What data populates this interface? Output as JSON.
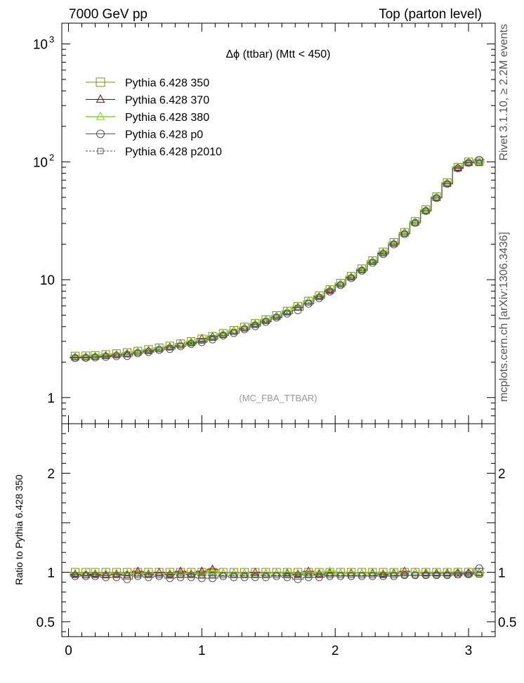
{
  "header": {
    "energy_label": "7000 GeV pp",
    "process_label": "Top (parton level)"
  },
  "side_labels": {
    "rivet": "Rivet 3.1.10, ≥ 2.2M events",
    "mcplots": "mcplots.cern.ch [arXiv:1306.3436]"
  },
  "chart_data": [
    {
      "type": "line",
      "title": "Δϕ (ttbar) (Mtt < 450)",
      "watermark": "(MC_FBA_TTBAR)",
      "y_scale": "log",
      "xlim": [
        -0.05,
        3.2
      ],
      "ylim": [
        0.6,
        1500
      ],
      "y_ticks": [
        {
          "value": 1,
          "label": "1"
        },
        {
          "value": 10,
          "label": "10"
        },
        {
          "value": 100,
          "label": "10",
          "exp": "2"
        },
        {
          "value": 1000,
          "label": "10",
          "exp": "3"
        }
      ],
      "legend_position": "top-left",
      "x": [
        0.05,
        0.13,
        0.2,
        0.28,
        0.36,
        0.44,
        0.52,
        0.6,
        0.68,
        0.76,
        0.84,
        0.92,
        1.0,
        1.08,
        1.16,
        1.24,
        1.32,
        1.4,
        1.48,
        1.56,
        1.64,
        1.72,
        1.8,
        1.88,
        1.96,
        2.04,
        2.12,
        2.2,
        2.28,
        2.36,
        2.44,
        2.52,
        2.6,
        2.68,
        2.76,
        2.84,
        2.92,
        3.0,
        3.08
      ],
      "series": [
        {
          "name": "Pythia 6.428 350",
          "color": "#8a8a1a",
          "marker": "square",
          "dash": "solid",
          "values": [
            2.25,
            2.26,
            2.28,
            2.32,
            2.36,
            2.41,
            2.48,
            2.56,
            2.64,
            2.74,
            2.86,
            2.99,
            3.14,
            3.31,
            3.5,
            3.72,
            3.97,
            4.26,
            4.59,
            4.97,
            5.42,
            5.95,
            6.58,
            7.33,
            8.24,
            9.35,
            10.7,
            12.4,
            14.5,
            17.2,
            20.7,
            25.2,
            31.2,
            39.3,
            50.6,
            66.7,
            90.0,
            100.0,
            100.0
          ]
        },
        {
          "name": "Pythia 6.428 370",
          "color": "#800020",
          "marker": "triangle",
          "dash": "solid",
          "values": [
            2.2,
            2.2,
            2.24,
            2.25,
            2.31,
            2.33,
            2.46,
            2.5,
            2.62,
            2.68,
            2.86,
            2.93,
            3.17,
            3.28,
            3.46,
            3.69,
            3.93,
            4.17,
            4.54,
            4.92,
            5.36,
            5.83,
            6.58,
            7.19,
            8.16,
            9.26,
            10.6,
            12.2,
            14.4,
            16.9,
            20.5,
            25.2,
            31.2,
            38.9,
            50.1,
            66.0,
            89.1,
            99.0,
            99.5
          ]
        },
        {
          "name": "Pythia 6.428 380",
          "color": "#80d820",
          "marker": "triangle",
          "dash": "solid",
          "values": [
            2.23,
            2.24,
            2.26,
            2.3,
            2.34,
            2.39,
            2.46,
            2.54,
            2.62,
            2.72,
            2.84,
            2.97,
            3.12,
            3.34,
            3.48,
            3.7,
            3.95,
            4.24,
            4.57,
            4.95,
            5.4,
            5.93,
            6.6,
            7.3,
            8.3,
            9.3,
            10.7,
            12.3,
            14.5,
            17.1,
            20.6,
            25.1,
            31.3,
            39.2,
            50.4,
            66.5,
            90.5,
            100.5,
            100.0
          ]
        },
        {
          "name": "Pythia 6.428 p0",
          "color": "#555555",
          "marker": "circle",
          "dash": "solid",
          "values": [
            2.16,
            2.17,
            2.19,
            2.21,
            2.24,
            2.25,
            2.38,
            2.43,
            2.53,
            2.58,
            2.72,
            2.85,
            2.95,
            3.11,
            3.36,
            3.52,
            3.79,
            4.03,
            4.38,
            4.77,
            5.15,
            5.5,
            6.25,
            6.97,
            7.91,
            8.98,
            10.3,
            11.9,
            13.9,
            16.5,
            19.9,
            24.4,
            30.3,
            38.3,
            49.3,
            64.9,
            88.0,
            98.0,
            104.0
          ]
        },
        {
          "name": "Pythia 6.428 p2010",
          "color": "#555555",
          "marker": "square-small",
          "dash": "dashed",
          "values": [
            2.18,
            2.19,
            2.21,
            2.25,
            2.28,
            2.33,
            2.4,
            2.47,
            2.56,
            2.65,
            2.76,
            2.89,
            3.03,
            3.2,
            3.38,
            3.6,
            3.84,
            4.13,
            4.45,
            4.82,
            5.26,
            5.77,
            6.38,
            7.11,
            7.99,
            9.07,
            10.4,
            12.0,
            14.1,
            16.7,
            20.1,
            24.5,
            30.4,
            38.2,
            49.1,
            64.8,
            87.5,
            97.5,
            97.5
          ]
        }
      ]
    },
    {
      "type": "line",
      "ylabel": "Ratio to Pythia 6.428 350",
      "xlim": [
        -0.05,
        3.2
      ],
      "ylim": [
        0.35,
        2.5
      ],
      "x_ticks": [
        {
          "value": 0,
          "label": "0"
        },
        {
          "value": 1,
          "label": "1"
        },
        {
          "value": 2,
          "label": "2"
        },
        {
          "value": 3,
          "label": "3"
        }
      ],
      "y_ticks": [
        {
          "value": 0.5,
          "label": "0.5"
        },
        {
          "value": 1,
          "label": "1"
        },
        {
          "value": 2,
          "label": "2"
        }
      ],
      "x": [
        0.05,
        0.13,
        0.2,
        0.28,
        0.36,
        0.44,
        0.52,
        0.6,
        0.68,
        0.76,
        0.84,
        0.92,
        1.0,
        1.08,
        1.16,
        1.24,
        1.32,
        1.4,
        1.48,
        1.56,
        1.64,
        1.72,
        1.8,
        1.88,
        1.96,
        2.04,
        2.12,
        2.2,
        2.28,
        2.36,
        2.44,
        2.52,
        2.6,
        2.68,
        2.76,
        2.84,
        2.92,
        3.0,
        3.08
      ],
      "series": [
        {
          "name": "Pythia 6.428 350",
          "color": "#8a8a1a",
          "marker": "square",
          "dash": "solid",
          "values": [
            1.0,
            1.0,
            1.0,
            1.0,
            1.0,
            1.0,
            1.0,
            1.0,
            1.0,
            1.0,
            1.0,
            1.0,
            1.0,
            1.0,
            1.0,
            1.0,
            1.0,
            1.0,
            1.0,
            1.0,
            1.0,
            1.0,
            1.0,
            1.0,
            1.0,
            1.0,
            1.0,
            1.0,
            1.0,
            1.0,
            1.0,
            1.0,
            1.0,
            1.0,
            1.0,
            1.0,
            1.0,
            1.0,
            1.0
          ]
        },
        {
          "name": "Pythia 6.428 370",
          "color": "#800020",
          "marker": "triangle",
          "dash": "solid",
          "values": [
            0.98,
            0.97,
            0.98,
            0.97,
            0.98,
            0.97,
            1.01,
            0.98,
            1.0,
            0.98,
            1.01,
            0.98,
            1.01,
            1.03,
            0.99,
            0.99,
            0.99,
            1.0,
            0.99,
            0.99,
            0.99,
            0.98,
            1.01,
            0.98,
            0.99,
            0.99,
            0.99,
            0.99,
            0.99,
            0.98,
            0.99,
            1.01,
            1.0,
            0.99,
            0.99,
            0.99,
            0.99,
            0.99,
            0.995
          ]
        },
        {
          "name": "Pythia 6.428 380",
          "color": "#80d820",
          "marker": "triangle",
          "dash": "solid",
          "values": [
            0.99,
            0.99,
            0.99,
            0.99,
            0.99,
            0.99,
            0.99,
            0.99,
            0.99,
            0.99,
            0.99,
            0.99,
            0.99,
            1.01,
            0.99,
            0.99,
            0.99,
            0.99,
            0.99,
            0.99,
            1.0,
            0.99,
            1.0,
            1.0,
            1.01,
            0.99,
            1.0,
            0.99,
            1.0,
            0.99,
            1.0,
            1.0,
            1.0,
            1.0,
            1.0,
            1.0,
            1.005,
            1.005,
            1.0
          ]
        },
        {
          "name": "Pythia 6.428 p0",
          "color": "#555555",
          "marker": "circle",
          "dash": "solid",
          "values": [
            0.96,
            0.96,
            0.96,
            0.95,
            0.95,
            0.93,
            0.96,
            0.95,
            0.96,
            0.94,
            0.95,
            0.95,
            0.94,
            0.94,
            0.96,
            0.95,
            0.95,
            0.95,
            0.95,
            0.96,
            0.95,
            0.93,
            0.95,
            0.95,
            0.96,
            0.96,
            0.96,
            0.96,
            0.96,
            0.96,
            0.96,
            0.97,
            0.97,
            0.97,
            0.97,
            0.97,
            0.98,
            0.98,
            1.04
          ]
        },
        {
          "name": "Pythia 6.428 p2010",
          "color": "#555555",
          "marker": "square-small",
          "dash": "dashed",
          "values": [
            0.97,
            0.97,
            0.97,
            0.97,
            0.97,
            0.97,
            0.97,
            0.97,
            0.97,
            0.97,
            0.97,
            0.97,
            0.97,
            0.97,
            0.97,
            0.97,
            0.97,
            0.97,
            0.97,
            0.97,
            0.97,
            0.97,
            0.97,
            0.97,
            0.97,
            0.97,
            0.97,
            0.97,
            0.97,
            0.97,
            0.97,
            0.97,
            0.97,
            0.97,
            0.97,
            0.97,
            0.97,
            0.975,
            0.975
          ]
        }
      ]
    }
  ]
}
